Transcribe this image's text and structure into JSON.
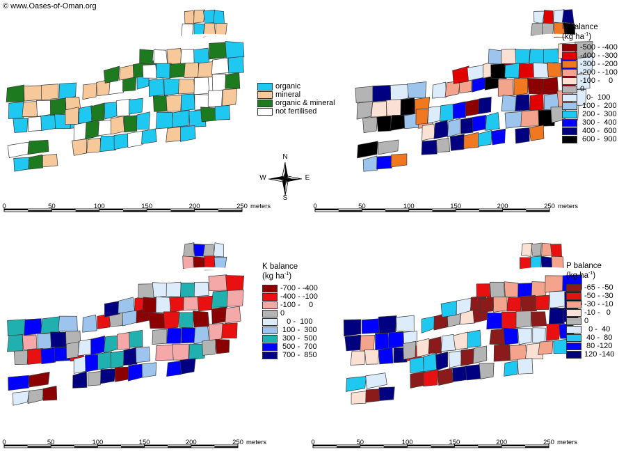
{
  "copyright": "© www.Oases-of-Oman.org",
  "fertilisation": {
    "items": [
      {
        "label": "organic",
        "color": "#1ec8f0"
      },
      {
        "label": "mineral",
        "color": "#f6c89a"
      },
      {
        "label": "organic & mineral",
        "color": "#1e7a1e"
      },
      {
        "label": "not fertilised",
        "color": "#ffffff"
      }
    ]
  },
  "n_balance": {
    "title": "N balance",
    "unit_pre": "(kg ha",
    "unit_sup": "-1",
    "unit_post": ")",
    "classes": [
      {
        "label": "-500 - -400",
        "color": "#8b0000"
      },
      {
        "label": "-400 - -300",
        "color": "#e00000"
      },
      {
        "label": "-300 - -200",
        "color": "#f07820"
      },
      {
        "label": "-200 - -100",
        "color": "#f4a48c"
      },
      {
        "label": "-100 -    0",
        "color": "#fbe0d4"
      },
      {
        "label": "0",
        "color": "#b4b4b4"
      },
      {
        "label": "   0-  100",
        "color": "#dcecfa"
      },
      {
        "label": " 100 -  200",
        "color": "#9cc4ec"
      },
      {
        "label": " 200 -  300",
        "color": "#1ec8f0"
      },
      {
        "label": " 300 -  400",
        "color": "#0000ff"
      },
      {
        "label": " 400 -  600",
        "color": "#000080"
      },
      {
        "label": " 600 -  900",
        "color": "#000000"
      }
    ]
  },
  "k_balance": {
    "title": "K balance",
    "unit_pre": "(kg ha",
    "unit_sup": "-1",
    "unit_post": ")",
    "classes": [
      {
        "label": "-700 - -400",
        "color": "#8b0000"
      },
      {
        "label": "-400 - -100",
        "color": "#e81010"
      },
      {
        "label": "-100 -    0",
        "color": "#f4a8a8"
      },
      {
        "label": "0",
        "color": "#b4b4b4"
      },
      {
        "label": "   0 -  100",
        "color": "#dcecfa"
      },
      {
        "label": " 100 -  300",
        "color": "#9cc4ec"
      },
      {
        "label": " 300 -  500",
        "color": "#20b0b0"
      },
      {
        "label": " 500 -  700",
        "color": "#0000ff"
      },
      {
        "label": " 700 -  850",
        "color": "#000080"
      }
    ]
  },
  "p_balance": {
    "title": "P balance",
    "unit_pre": "(kg ha",
    "unit_sup": "-1",
    "unit_post": ")",
    "classes": [
      {
        "label": "-65 - -50",
        "color": "#8b1a1a"
      },
      {
        "label": "-50 - -30",
        "color": "#e81010"
      },
      {
        "label": "-30 - -10",
        "color": "#f4a48c"
      },
      {
        "label": "-10 -   0",
        "color": "#fbe0d4"
      },
      {
        "label": "0",
        "color": "#b4b4b4"
      },
      {
        "label": "  0 -  40",
        "color": "#dcecfa"
      },
      {
        "label": " 40 -  80",
        "color": "#1ec8f0"
      },
      {
        "label": " 80 -120",
        "color": "#0000ff"
      },
      {
        "label": "120 -140",
        "color": "#000080"
      }
    ]
  },
  "compass": {
    "n": "N",
    "s": "S",
    "e": "E",
    "w": "W"
  },
  "scalebar": {
    "ticks": [
      "0",
      "50",
      "100",
      "150",
      "200",
      "250"
    ],
    "units": "meters"
  }
}
